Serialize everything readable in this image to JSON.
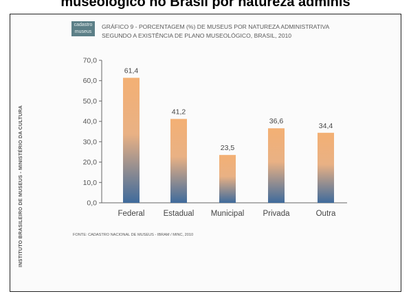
{
  "page_heading": "museológico no Brasil por natureza adminis",
  "side_text": "INSTITUTO BRASILEIRO DE MUSEUS - MINISTÉRIO DA CULTURA",
  "logo": {
    "line1": "cadastro",
    "line2": "museus"
  },
  "colors": {
    "bar_top": "#f3b074",
    "bar_bottom": "#3f6b9c",
    "axis": "#666666",
    "text": "#555555"
  },
  "chart_data": {
    "type": "bar",
    "title": "GRÁFICO 9 - PORCENTAGEM (%) DE MUSEUS POR NATUREZA ADMINISTRATIVA",
    "subtitle": "SEGUNDO A EXISTÊNCIA DE PLANO MUSEOLÓGICO, BRASIL, 2010",
    "categories": [
      "Federal",
      "Estadual",
      "Municipal",
      "Privada",
      "Outra"
    ],
    "values": [
      61.4,
      41.2,
      23.5,
      36.6,
      34.4
    ],
    "value_labels": [
      "61,4",
      "41,2",
      "23,5",
      "36,6",
      "34,4"
    ],
    "yticks": [
      "0,0",
      "10,0",
      "20,0",
      "30,0",
      "40,0",
      "50,0",
      "60,0",
      "70,0"
    ],
    "ylim": [
      0,
      70
    ],
    "grid": false,
    "source": "FONTE: CADASTRO NACIONAL DE MUSEUS - IBRAM / MINC, 2010"
  }
}
